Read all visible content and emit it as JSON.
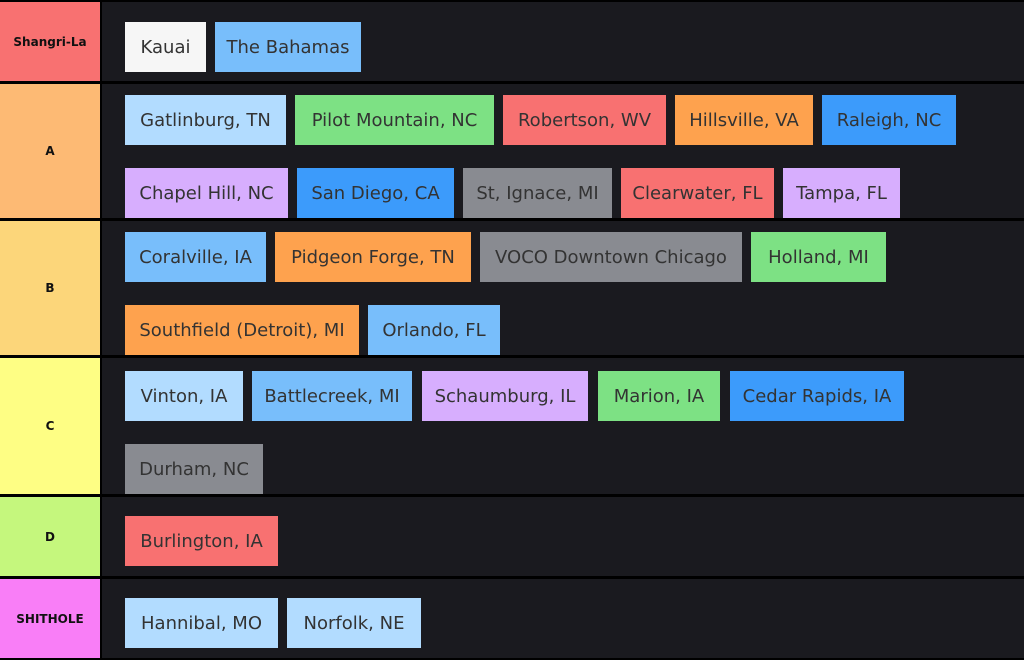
{
  "tiers": [
    {
      "label": "Shangri-La",
      "color": "#f87171",
      "items": [
        {
          "text": "Kauai",
          "color": "#f6f6f6"
        },
        {
          "text": "The Bahamas",
          "color": "#78befb"
        }
      ]
    },
    {
      "label": "A",
      "color": "#fdba74",
      "items": [
        {
          "text": "Gatlinburg, TN",
          "color": "#b2dcff"
        },
        {
          "text": "Pilot Mountain, NC",
          "color": "#7de184"
        },
        {
          "text": "Robertson, WV",
          "color": "#f87171"
        },
        {
          "text": "Hillsville, VA",
          "color": "#fea24e"
        },
        {
          "text": "Raleigh, NC",
          "color": "#3c9bfb"
        },
        {
          "text": "Chapel Hill, NC",
          "color": "#d7aefe"
        },
        {
          "text": "San Diego, CA",
          "color": "#3c9bfb"
        },
        {
          "text": "St, Ignace, MI",
          "color": "#898b91"
        },
        {
          "text": "Clearwater, FL",
          "color": "#f87171"
        },
        {
          "text": "Tampa, FL",
          "color": "#d7aefe"
        }
      ]
    },
    {
      "label": "B",
      "color": "#fcd67a",
      "items": [
        {
          "text": "Coralville, IA",
          "color": "#78befb"
        },
        {
          "text": "Pidgeon Forge, TN",
          "color": "#fea24e"
        },
        {
          "text": "VOCO Downtown Chicago",
          "color": "#898b91"
        },
        {
          "text": "Holland, MI",
          "color": "#7de184"
        },
        {
          "text": "Southfield (Detroit), MI",
          "color": "#fea24e"
        },
        {
          "text": "Orlando, FL",
          "color": "#78befb"
        }
      ]
    },
    {
      "label": "C",
      "color": "#fefe84",
      "items": [
        {
          "text": "Vinton, IA",
          "color": "#b2dcff"
        },
        {
          "text": "Battlecreek, MI",
          "color": "#78befb"
        },
        {
          "text": "Schaumburg, IL",
          "color": "#d7aefe"
        },
        {
          "text": "Marion, IA",
          "color": "#7de184"
        },
        {
          "text": "Cedar Rapids, IA",
          "color": "#3c9bfb"
        },
        {
          "text": "Durham, NC",
          "color": "#898b91"
        }
      ]
    },
    {
      "label": "D",
      "color": "#c5f77d",
      "items": [
        {
          "text": "Burlington, IA",
          "color": "#f87171"
        }
      ]
    },
    {
      "label": "SHITHOLE",
      "color": "#f97ef7",
      "items": [
        {
          "text": "Hannibal, MO",
          "color": "#b2dcff"
        },
        {
          "text": "Norfolk, NE",
          "color": "#b2dcff"
        }
      ]
    }
  ]
}
